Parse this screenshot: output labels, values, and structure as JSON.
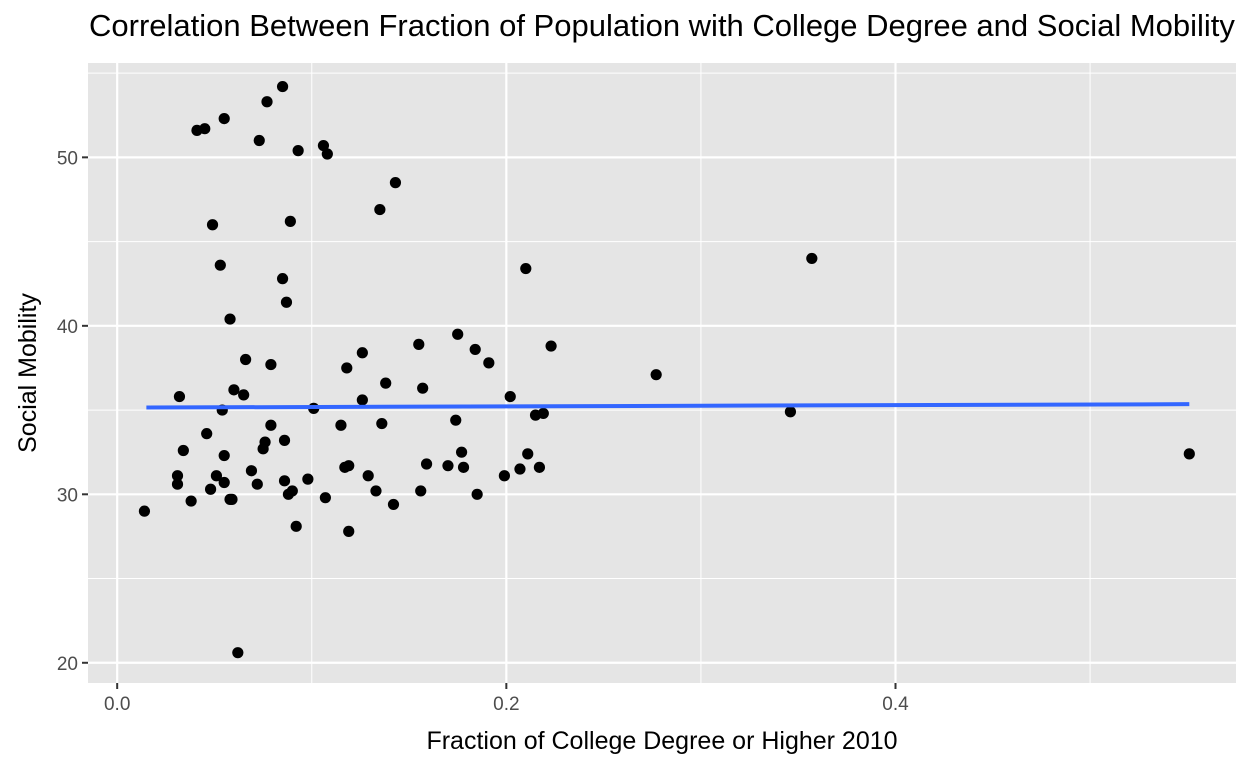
{
  "chart_data": {
    "type": "scatter",
    "title": "Correlation Between Fraction of Population with College Degree and Social Mobility",
    "xlabel": "Fraction of College Degree or Higher 2010",
    "ylabel": "Social Mobility",
    "xlim": [
      -0.015,
      0.575
    ],
    "ylim": [
      18.8,
      55.6
    ],
    "xticks": [
      0.0,
      0.2,
      0.4
    ],
    "xtick_labels": [
      "0.0",
      "0.2",
      "0.4"
    ],
    "yticks": [
      20,
      30,
      40,
      50
    ],
    "ytick_labels": [
      "20",
      "30",
      "40",
      "50"
    ],
    "grid": true,
    "background": "#e5e5e5",
    "point_color": "#000000",
    "trend_line": {
      "color": "#3366ff",
      "x": [
        0.015,
        0.551
      ],
      "y": [
        35.15,
        35.35
      ]
    },
    "points": [
      [
        0.014,
        29.0
      ],
      [
        0.031,
        31.1
      ],
      [
        0.031,
        30.6
      ],
      [
        0.032,
        35.8
      ],
      [
        0.034,
        32.6
      ],
      [
        0.038,
        29.6
      ],
      [
        0.041,
        51.6
      ],
      [
        0.045,
        51.7
      ],
      [
        0.046,
        33.6
      ],
      [
        0.048,
        30.3
      ],
      [
        0.049,
        46.0
      ],
      [
        0.051,
        31.1
      ],
      [
        0.053,
        43.6
      ],
      [
        0.054,
        35.0
      ],
      [
        0.055,
        32.3
      ],
      [
        0.055,
        30.7
      ],
      [
        0.055,
        52.3
      ],
      [
        0.058,
        29.7
      ],
      [
        0.058,
        40.4
      ],
      [
        0.059,
        29.7
      ],
      [
        0.06,
        36.2
      ],
      [
        0.062,
        20.6
      ],
      [
        0.065,
        35.9
      ],
      [
        0.066,
        38.0
      ],
      [
        0.069,
        31.4
      ],
      [
        0.072,
        30.6
      ],
      [
        0.073,
        51.0
      ],
      [
        0.075,
        32.7
      ],
      [
        0.076,
        33.1
      ],
      [
        0.077,
        53.3
      ],
      [
        0.079,
        37.7
      ],
      [
        0.079,
        34.1
      ],
      [
        0.085,
        54.2
      ],
      [
        0.085,
        42.8
      ],
      [
        0.086,
        33.2
      ],
      [
        0.086,
        30.8
      ],
      [
        0.087,
        41.4
      ],
      [
        0.088,
        30.0
      ],
      [
        0.089,
        46.2
      ],
      [
        0.09,
        30.2
      ],
      [
        0.092,
        28.1
      ],
      [
        0.093,
        50.4
      ],
      [
        0.098,
        30.9
      ],
      [
        0.101,
        35.1
      ],
      [
        0.106,
        50.7
      ],
      [
        0.107,
        29.8
      ],
      [
        0.108,
        50.2
      ],
      [
        0.115,
        34.1
      ],
      [
        0.117,
        31.6
      ],
      [
        0.118,
        37.5
      ],
      [
        0.119,
        31.7
      ],
      [
        0.119,
        27.8
      ],
      [
        0.126,
        38.4
      ],
      [
        0.126,
        35.6
      ],
      [
        0.129,
        31.1
      ],
      [
        0.133,
        30.2
      ],
      [
        0.135,
        46.9
      ],
      [
        0.136,
        34.2
      ],
      [
        0.138,
        36.6
      ],
      [
        0.142,
        29.4
      ],
      [
        0.143,
        48.5
      ],
      [
        0.155,
        38.9
      ],
      [
        0.156,
        30.2
      ],
      [
        0.157,
        36.3
      ],
      [
        0.159,
        31.8
      ],
      [
        0.17,
        31.7
      ],
      [
        0.174,
        34.4
      ],
      [
        0.175,
        39.5
      ],
      [
        0.177,
        32.5
      ],
      [
        0.178,
        31.6
      ],
      [
        0.184,
        38.6
      ],
      [
        0.185,
        30.0
      ],
      [
        0.191,
        37.8
      ],
      [
        0.199,
        31.1
      ],
      [
        0.202,
        35.8
      ],
      [
        0.207,
        31.5
      ],
      [
        0.21,
        43.4
      ],
      [
        0.211,
        32.4
      ],
      [
        0.215,
        34.7
      ],
      [
        0.217,
        31.6
      ],
      [
        0.219,
        34.8
      ],
      [
        0.223,
        38.8
      ],
      [
        0.277,
        37.1
      ],
      [
        0.346,
        34.9
      ],
      [
        0.357,
        44.0
      ],
      [
        0.551,
        32.4
      ]
    ]
  }
}
